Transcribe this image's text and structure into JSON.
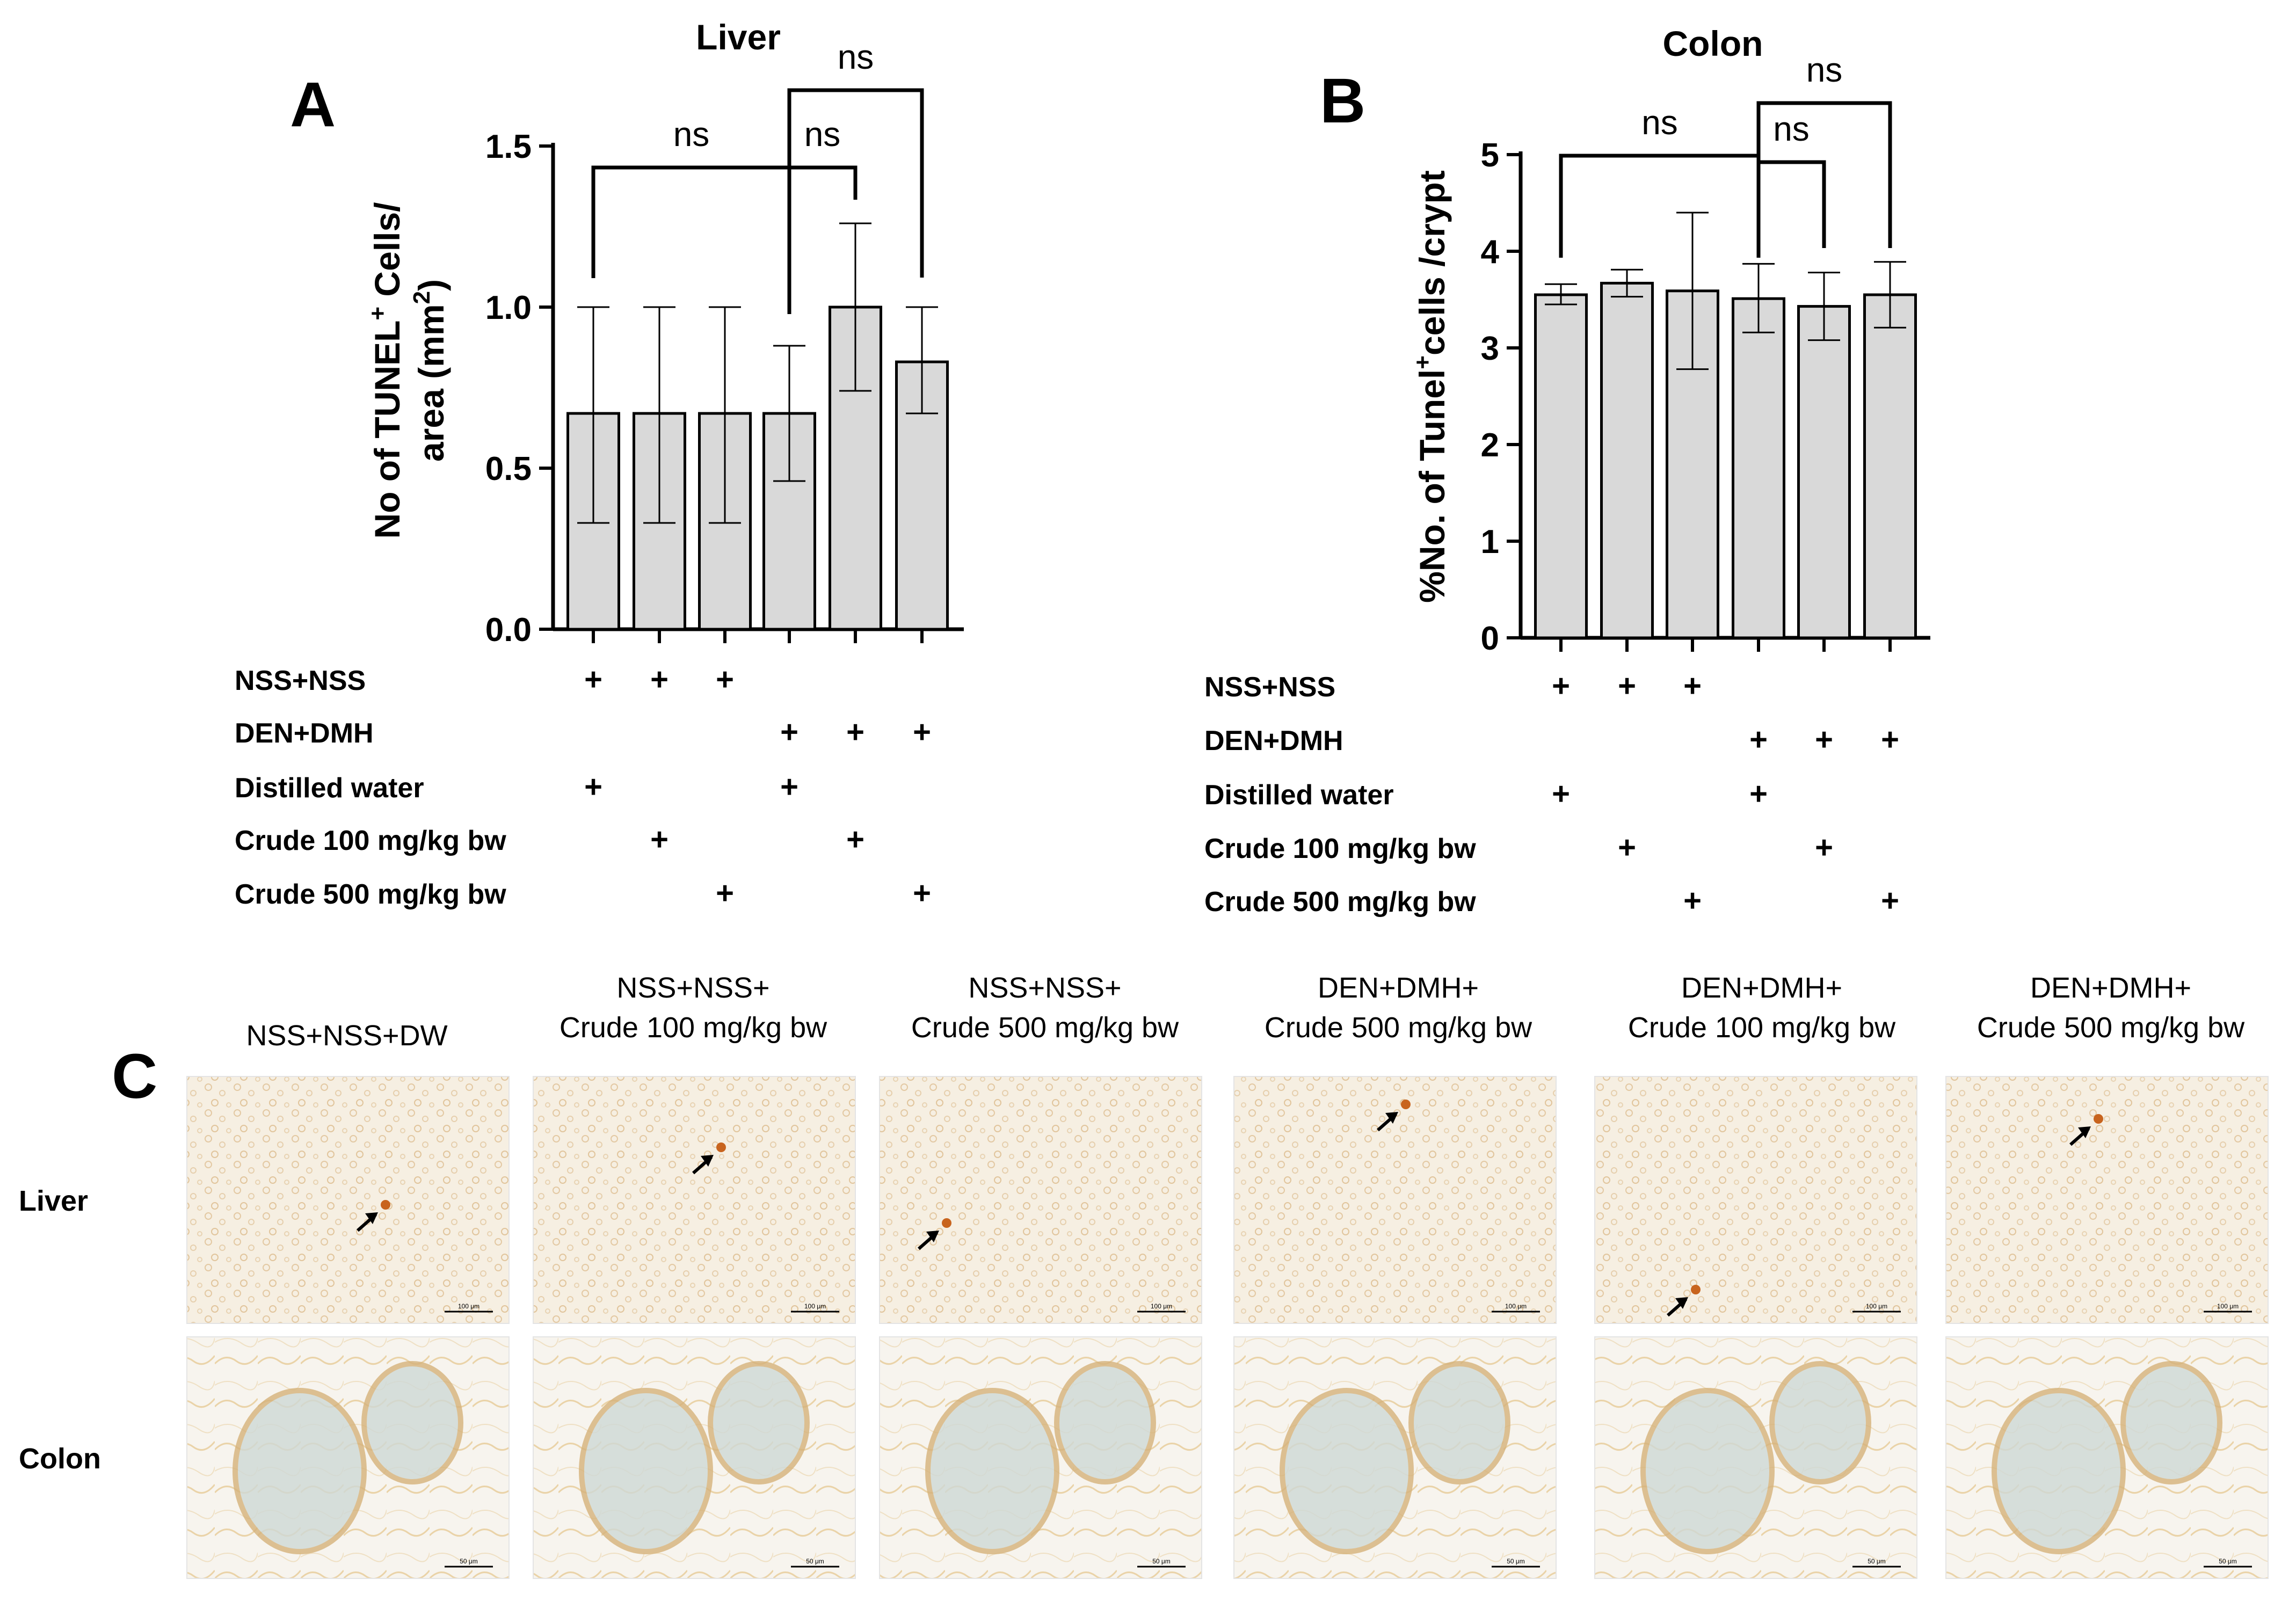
{
  "charts": [
    {
      "letter": "A",
      "title": "Liver",
      "ylabel_line1_pre": "No of TUNEL",
      "ylabel_line1_sup": "+",
      "ylabel_line1_post": " Cells/",
      "ylabel_line2_pre": "area (mm",
      "ylabel_line2_sup": "2",
      "ylabel_line2_post": ")",
      "yticks": [
        "0.0",
        "0.5",
        "1.0",
        "1.5"
      ],
      "ns_labels": [
        "ns",
        "ns",
        "ns"
      ],
      "conditions": [
        {
          "label": "NSS+NSS",
          "marks": [
            true,
            true,
            true,
            false,
            false,
            false
          ]
        },
        {
          "label": "DEN+DMH",
          "marks": [
            false,
            false,
            false,
            true,
            true,
            true
          ]
        },
        {
          "label": "Distilled water",
          "marks": [
            true,
            false,
            false,
            true,
            false,
            false
          ]
        },
        {
          "label": "Crude 100 mg/kg bw",
          "marks": [
            false,
            true,
            false,
            false,
            true,
            false
          ]
        },
        {
          "label": "Crude 500 mg/kg bw",
          "marks": [
            false,
            false,
            true,
            false,
            false,
            true
          ]
        }
      ]
    },
    {
      "letter": "B",
      "title": "Colon",
      "ylabel_line1_pre": "%No. of Tunel",
      "ylabel_line1_sup": "+",
      "ylabel_line1_post": "cells /crypt",
      "yticks": [
        "0",
        "1",
        "2",
        "3",
        "4",
        "5"
      ],
      "ns_labels": [
        "ns",
        "ns",
        "ns"
      ],
      "conditions": [
        {
          "label": "NSS+NSS",
          "marks": [
            true,
            true,
            true,
            false,
            false,
            false
          ]
        },
        {
          "label": "DEN+DMH",
          "marks": [
            false,
            false,
            false,
            true,
            true,
            true
          ]
        },
        {
          "label": "Distilled water",
          "marks": [
            true,
            false,
            false,
            true,
            false,
            false
          ]
        },
        {
          "label": "Crude 100 mg/kg bw",
          "marks": [
            false,
            true,
            false,
            false,
            true,
            false
          ]
        },
        {
          "label": "Crude 500 mg/kg bw",
          "marks": [
            false,
            false,
            true,
            false,
            false,
            true
          ]
        }
      ]
    }
  ],
  "plus_symbol": "+",
  "chart_data": [
    {
      "type": "bar",
      "title": "Liver",
      "ylabel": "No of TUNEL+ Cells/ area (mm2)",
      "ylim": [
        0,
        1.5
      ],
      "values": [
        0.67,
        0.67,
        0.67,
        0.67,
        1.0,
        0.83
      ],
      "error_low": [
        0.33,
        0.33,
        0.33,
        0.46,
        0.74,
        0.67
      ],
      "error_high": [
        1.0,
        1.0,
        1.0,
        0.88,
        1.26,
        1.0
      ],
      "bar_color": "#d9d9d9",
      "comparisons": [
        {
          "from": 1,
          "to": 4,
          "label": "ns"
        },
        {
          "from": 4,
          "to": 5,
          "label": "ns"
        },
        {
          "from": 4,
          "to": 6,
          "label": "ns"
        }
      ]
    },
    {
      "type": "bar",
      "title": "Colon",
      "ylabel": "%No. of Tunel+cells /crypt",
      "ylim": [
        0,
        5
      ],
      "values": [
        3.55,
        3.67,
        3.59,
        3.51,
        3.43,
        3.55
      ],
      "error_low": [
        3.45,
        3.53,
        2.78,
        3.16,
        3.08,
        3.21
      ],
      "error_high": [
        3.66,
        3.81,
        4.4,
        3.87,
        3.78,
        3.89
      ],
      "bar_color": "#d9d9d9",
      "comparisons": [
        {
          "from": 1,
          "to": 4,
          "label": "ns"
        },
        {
          "from": 4,
          "to": 5,
          "label": "ns"
        },
        {
          "from": 4,
          "to": 6,
          "label": "ns"
        }
      ]
    }
  ],
  "micrographs": {
    "letter": "C",
    "headers": [
      [
        "NSS+NSS+DW"
      ],
      [
        "NSS+NSS+",
        "Crude 100 mg/kg bw"
      ],
      [
        "NSS+NSS+",
        "Crude 500 mg/kg bw"
      ],
      [
        "DEN+DMH+",
        "Crude 500 mg/kg bw"
      ],
      [
        "DEN+DMH+",
        "Crude 100 mg/kg bw"
      ],
      [
        "DEN+DMH+",
        "Crude 500 mg/kg bw"
      ]
    ],
    "rows": [
      {
        "label": "Liver",
        "scale_label": "100 μm"
      },
      {
        "label": "Colon",
        "scale_label": "50 μm"
      }
    ]
  }
}
